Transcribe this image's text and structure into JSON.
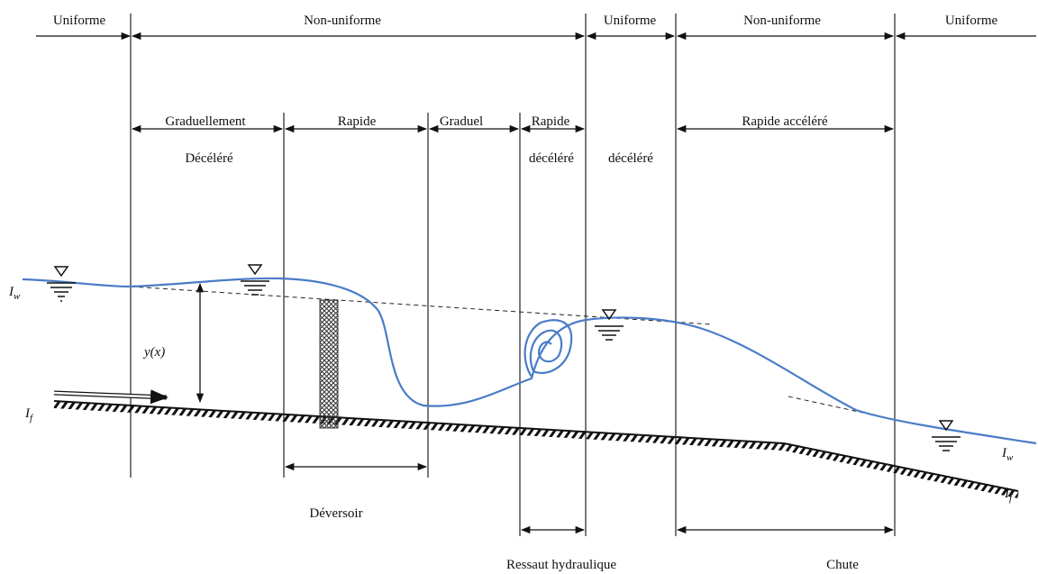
{
  "header": {
    "regimes": [
      "Uniforme",
      "Non-uniforme",
      "Uniforme",
      "Non-uniforme",
      "Uniforme"
    ]
  },
  "sections": {
    "types": [
      "Graduellement",
      "Rapide",
      "Graduel",
      "Rapide",
      "Rapide accéléré"
    ],
    "qualifiers": [
      "Décéléré",
      "décéléré",
      "décéléré"
    ]
  },
  "symbols": {
    "water_slope_left": {
      "symbol": "I",
      "subscript": "w"
    },
    "depth": "y(x)",
    "bed_slope_left": {
      "symbol": "I",
      "subscript": "f"
    },
    "water_slope_right": {
      "symbol": "I",
      "subscript": "w"
    },
    "bed_slope_right": {
      "symbol": "I",
      "subscript": "f"
    }
  },
  "structures": [
    "Déversoir",
    "Ressaut hydraulique",
    "Chute"
  ]
}
